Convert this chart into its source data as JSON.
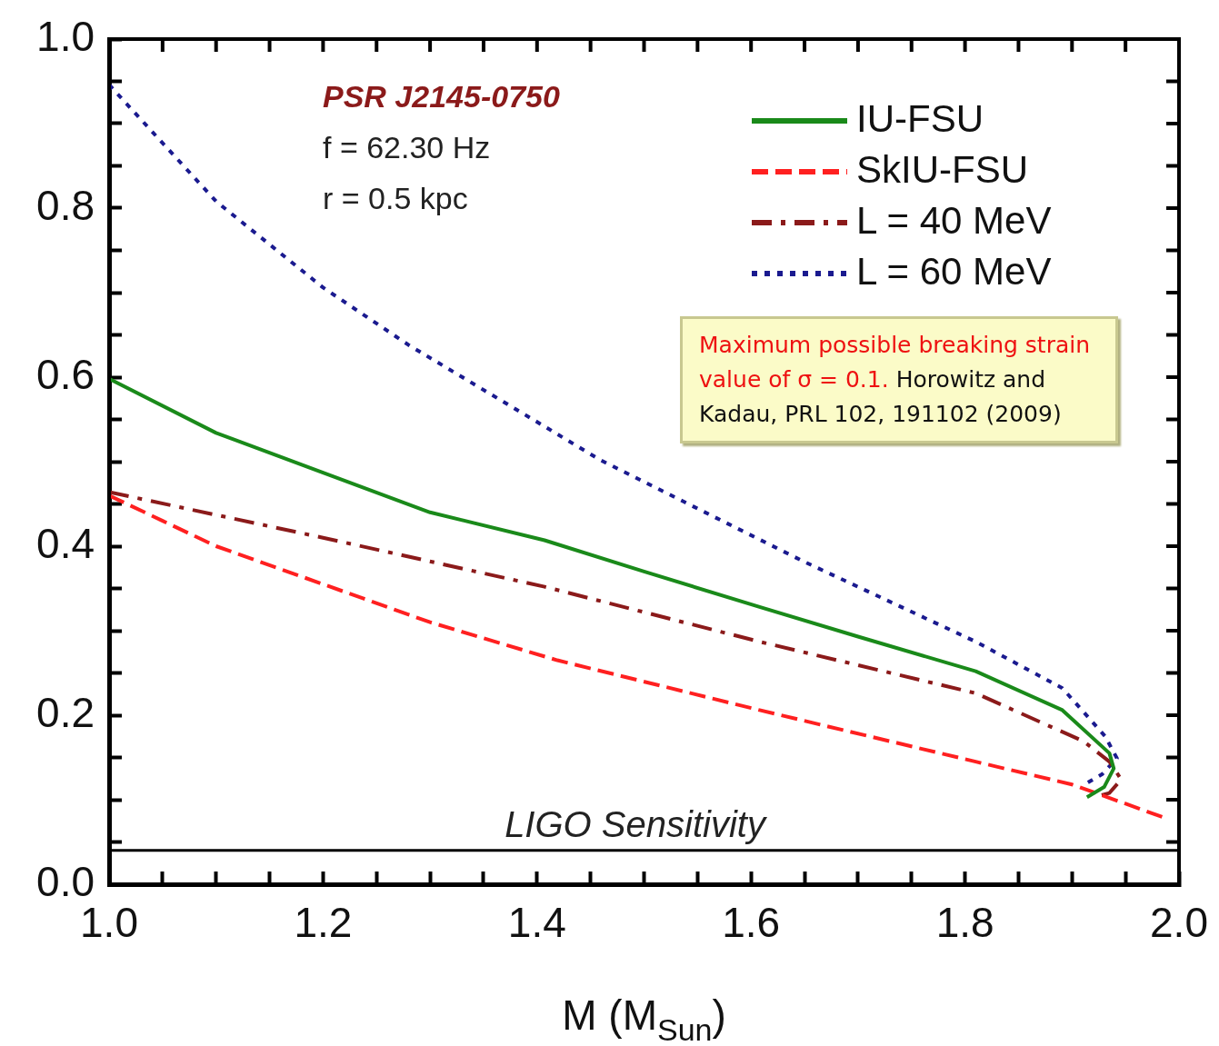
{
  "chart_data": {
    "type": "line",
    "xlabel": "M (M$_{Sun}$)",
    "xlim": [
      1.0,
      2.0
    ],
    "xticks": [
      {
        "value": 1.0,
        "label": "1.0"
      },
      {
        "value": 1.05,
        "label": null
      },
      {
        "value": 1.1,
        "label": null
      },
      {
        "value": 1.15,
        "label": null
      },
      {
        "value": 1.2,
        "label": "1.2"
      },
      {
        "value": 1.25,
        "label": null
      },
      {
        "value": 1.3,
        "label": null
      },
      {
        "value": 1.35,
        "label": null
      },
      {
        "value": 1.4,
        "label": "1.4"
      },
      {
        "value": 1.45,
        "label": null
      },
      {
        "value": 1.5,
        "label": null
      },
      {
        "value": 1.55,
        "label": null
      },
      {
        "value": 1.6,
        "label": "1.6"
      },
      {
        "value": 1.65,
        "label": null
      },
      {
        "value": 1.7,
        "label": null
      },
      {
        "value": 1.75,
        "label": null
      },
      {
        "value": 1.8,
        "label": "1.8"
      },
      {
        "value": 1.85,
        "label": null
      },
      {
        "value": 1.9,
        "label": null
      },
      {
        "value": 1.95,
        "label": null
      },
      {
        "value": 2.0,
        "label": "2.0"
      }
    ],
    "ylim": [
      0.0,
      1.0
    ],
    "yticks": [
      {
        "value": 0.0,
        "label": "0.0"
      },
      {
        "value": 0.05,
        "label": null
      },
      {
        "value": 0.1,
        "label": null
      },
      {
        "value": 0.15,
        "label": null
      },
      {
        "value": 0.2,
        "label": "0.2"
      },
      {
        "value": 0.25,
        "label": null
      },
      {
        "value": 0.3,
        "label": null
      },
      {
        "value": 0.35,
        "label": null
      },
      {
        "value": 0.4,
        "label": "0.4"
      },
      {
        "value": 0.45,
        "label": null
      },
      {
        "value": 0.5,
        "label": null
      },
      {
        "value": 0.55,
        "label": null
      },
      {
        "value": 0.6,
        "label": "0.6"
      },
      {
        "value": 0.65,
        "label": null
      },
      {
        "value": 0.7,
        "label": null
      },
      {
        "value": 0.75,
        "label": null
      },
      {
        "value": 0.8,
        "label": "0.8"
      },
      {
        "value": 0.85,
        "label": null
      },
      {
        "value": 0.9,
        "label": null
      },
      {
        "value": 0.95,
        "label": null
      },
      {
        "value": 1.0,
        "label": "1.0"
      }
    ],
    "legend": "top right",
    "grid": false,
    "marker": "none",
    "series": [
      {
        "name": "IU-FSU",
        "color": "#1a8a1a",
        "line_style": "solid",
        "x": [
          1.0,
          1.1,
          1.2,
          1.3,
          1.407,
          1.5,
          1.608,
          1.7,
          1.81,
          1.891,
          1.935,
          1.939,
          1.93,
          1.914
        ],
        "values": [
          0.598,
          0.534,
          0.487,
          0.44,
          0.407,
          0.37,
          0.328,
          0.293,
          0.252,
          0.206,
          0.155,
          0.137,
          0.115,
          0.103
        ]
      },
      {
        "name": "SkIU-FSU",
        "color": "#ff2020",
        "line_style": "dashed",
        "x": [
          1.0,
          1.05,
          1.1,
          1.2,
          1.3,
          1.419,
          1.608,
          1.81,
          1.9,
          1.988
        ],
        "values": [
          0.46,
          0.43,
          0.4,
          0.355,
          0.31,
          0.265,
          0.206,
          0.145,
          0.118,
          0.078
        ]
      },
      {
        "name": "L = 40 MeV",
        "color": "#8b1a1a",
        "line_style": "dashdot",
        "x": [
          1.0,
          1.2,
          1.407,
          1.608,
          1.81,
          1.911,
          1.935,
          1.946,
          1.935,
          1.926
        ],
        "values": [
          0.464,
          0.41,
          0.352,
          0.287,
          0.226,
          0.169,
          0.145,
          0.124,
          0.108,
          0.105
        ]
      },
      {
        "name": "L = 60 MeV",
        "color": "#1a1a8f",
        "line_style": "dotted",
        "x": [
          1.0,
          1.05,
          1.1,
          1.2,
          1.28,
          1.4,
          1.459,
          1.649,
          1.81,
          1.891,
          1.931,
          1.942,
          1.928,
          1.913
        ],
        "values": [
          0.946,
          0.877,
          0.808,
          0.706,
          0.638,
          0.547,
          0.502,
          0.382,
          0.287,
          0.232,
          0.175,
          0.149,
          0.13,
          0.119
        ]
      }
    ],
    "ref_lines": [
      {
        "axis": "y",
        "value": 0.04,
        "label": "LIGO Sensitivity",
        "color": "#000000",
        "line_style": "solid"
      }
    ],
    "annotations": [
      "PSR J2145-0750",
      "f = 62.30 Hz",
      "r = 0.5 kpc",
      "Maximum possible breaking strain  value of σ = 0.1.",
      "Horowitz and Kadau, PRL 102, 191102 (2009)"
    ]
  }
}
